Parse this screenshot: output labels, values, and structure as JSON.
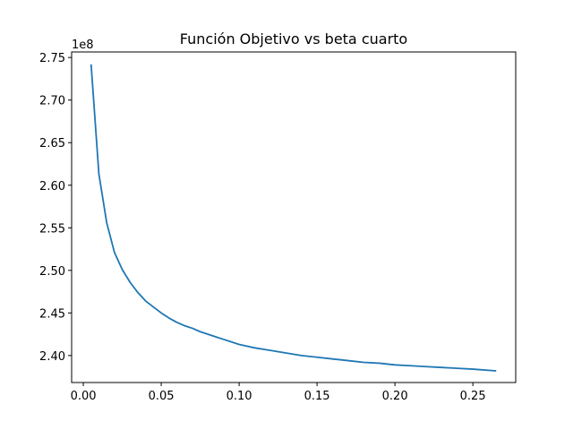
{
  "chart_data": {
    "type": "line",
    "title": "Función Objetivo vs beta cuarto",
    "xlabel": "",
    "ylabel": "",
    "y_offset_label": "1e8",
    "xlim": [
      -0.0075,
      0.2775
    ],
    "ylim": [
      2.3683,
      2.7565
    ],
    "x_ticks": [
      0.0,
      0.05,
      0.1,
      0.15,
      0.2,
      0.25
    ],
    "x_tick_labels": [
      "0.00",
      "0.05",
      "0.10",
      "0.15",
      "0.20",
      "0.25"
    ],
    "y_ticks": [
      2.4,
      2.45,
      2.5,
      2.55,
      2.6,
      2.65,
      2.7,
      2.75
    ],
    "y_tick_labels": [
      "2.40",
      "2.45",
      "2.50",
      "2.55",
      "2.60",
      "2.65",
      "2.70",
      "2.75"
    ],
    "grid": false,
    "series": [
      {
        "color": "#1f77b4",
        "x": [
          0.005,
          0.01,
          0.015,
          0.02,
          0.025,
          0.03,
          0.035,
          0.04,
          0.045,
          0.05,
          0.055,
          0.06,
          0.065,
          0.07,
          0.075,
          0.08,
          0.085,
          0.09,
          0.095,
          0.1,
          0.11,
          0.12,
          0.13,
          0.14,
          0.15,
          0.16,
          0.17,
          0.18,
          0.19,
          0.2,
          0.21,
          0.22,
          0.23,
          0.24,
          0.25,
          0.265
        ],
        "y": [
          2.742,
          2.613,
          2.556,
          2.521,
          2.501,
          2.486,
          2.474,
          2.464,
          2.457,
          2.45,
          2.444,
          2.439,
          2.435,
          2.432,
          2.428,
          2.425,
          2.422,
          2.419,
          2.416,
          2.413,
          2.409,
          2.406,
          2.403,
          2.4,
          2.398,
          2.396,
          2.394,
          2.392,
          2.391,
          2.389,
          2.388,
          2.387,
          2.386,
          2.385,
          2.384,
          2.382
        ]
      }
    ]
  }
}
